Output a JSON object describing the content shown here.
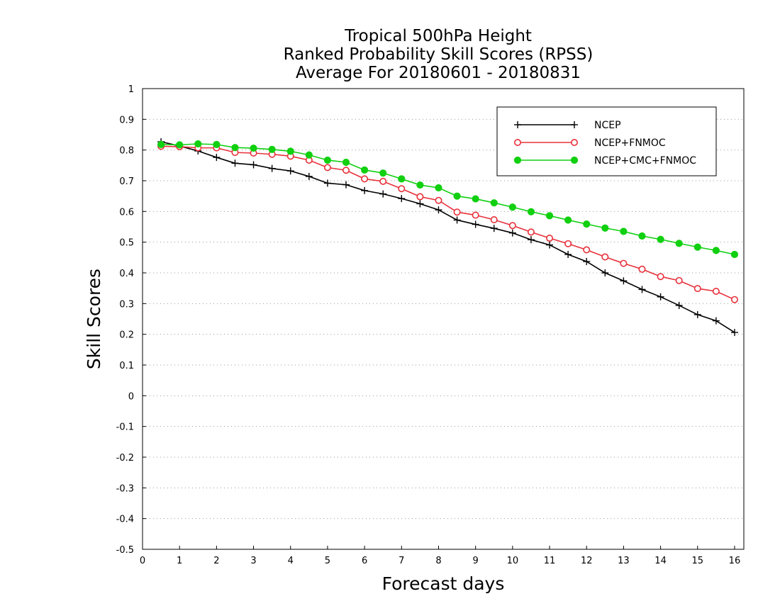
{
  "chart_data": {
    "type": "line",
    "title": [
      "Tropical 500hPa Height",
      "Ranked Probability Skill Scores (RPSS)",
      "Average For 20180601 - 20180831"
    ],
    "xlabel": "Forecast days",
    "ylabel": "Skill Scores",
    "xlim": [
      0,
      16.25
    ],
    "ylim": [
      -0.5,
      1
    ],
    "xticks": [
      0,
      1,
      2,
      3,
      4,
      5,
      6,
      7,
      8,
      9,
      10,
      11,
      12,
      13,
      14,
      15,
      16
    ],
    "yticks": [
      -0.5,
      -0.4,
      -0.3,
      -0.2,
      -0.1,
      0,
      0.1,
      0.2,
      0.3,
      0.4,
      0.5,
      0.6,
      0.7,
      0.8,
      0.9,
      1
    ],
    "ytick_labels": [
      "-0.5",
      "-0.4",
      "-0.3",
      "-0.2",
      "-0.1",
      "0",
      "0.1",
      "0.2",
      "0.3",
      "0.4",
      "0.5",
      "0.6",
      "0.7",
      "0.8",
      "0.9",
      "1"
    ],
    "grid": "horizontal-dotted",
    "legend_position": "top-right",
    "x": [
      0.5,
      1.0,
      1.5,
      2.0,
      2.5,
      3.0,
      3.5,
      4.0,
      4.5,
      5.0,
      5.5,
      6.0,
      6.5,
      7.0,
      7.5,
      8.0,
      8.5,
      9.0,
      9.5,
      10.0,
      10.5,
      11.0,
      11.5,
      12.0,
      12.5,
      13.0,
      13.5,
      14.0,
      14.5,
      15.0,
      15.5,
      16.0
    ],
    "series": [
      {
        "name": "NCEP",
        "color": "#000000",
        "marker": "plus",
        "values": [
          0.827,
          0.813,
          0.797,
          0.776,
          0.757,
          0.752,
          0.74,
          0.732,
          0.714,
          0.692,
          0.687,
          0.668,
          0.657,
          0.642,
          0.625,
          0.605,
          0.572,
          0.558,
          0.545,
          0.53,
          0.508,
          0.491,
          0.46,
          0.437,
          0.4,
          0.374,
          0.346,
          0.322,
          0.294,
          0.264,
          0.244,
          0.206
        ]
      },
      {
        "name": "NCEP+FNMOC",
        "color": "#e8303a",
        "marker": "open-circle",
        "values": [
          0.812,
          0.811,
          0.807,
          0.807,
          0.792,
          0.79,
          0.786,
          0.78,
          0.767,
          0.743,
          0.734,
          0.706,
          0.698,
          0.674,
          0.648,
          0.636,
          0.598,
          0.588,
          0.573,
          0.554,
          0.533,
          0.513,
          0.495,
          0.475,
          0.452,
          0.431,
          0.412,
          0.388,
          0.375,
          0.349,
          0.34,
          0.313
        ]
      },
      {
        "name": "NCEP+CMC+FNMOC",
        "color": "#10d010",
        "marker": "filled-circle",
        "values": [
          0.818,
          0.817,
          0.82,
          0.818,
          0.808,
          0.806,
          0.802,
          0.796,
          0.784,
          0.767,
          0.76,
          0.735,
          0.725,
          0.706,
          0.686,
          0.677,
          0.65,
          0.641,
          0.628,
          0.614,
          0.599,
          0.586,
          0.572,
          0.559,
          0.546,
          0.535,
          0.52,
          0.509,
          0.496,
          0.484,
          0.473,
          0.46
        ]
      }
    ]
  }
}
